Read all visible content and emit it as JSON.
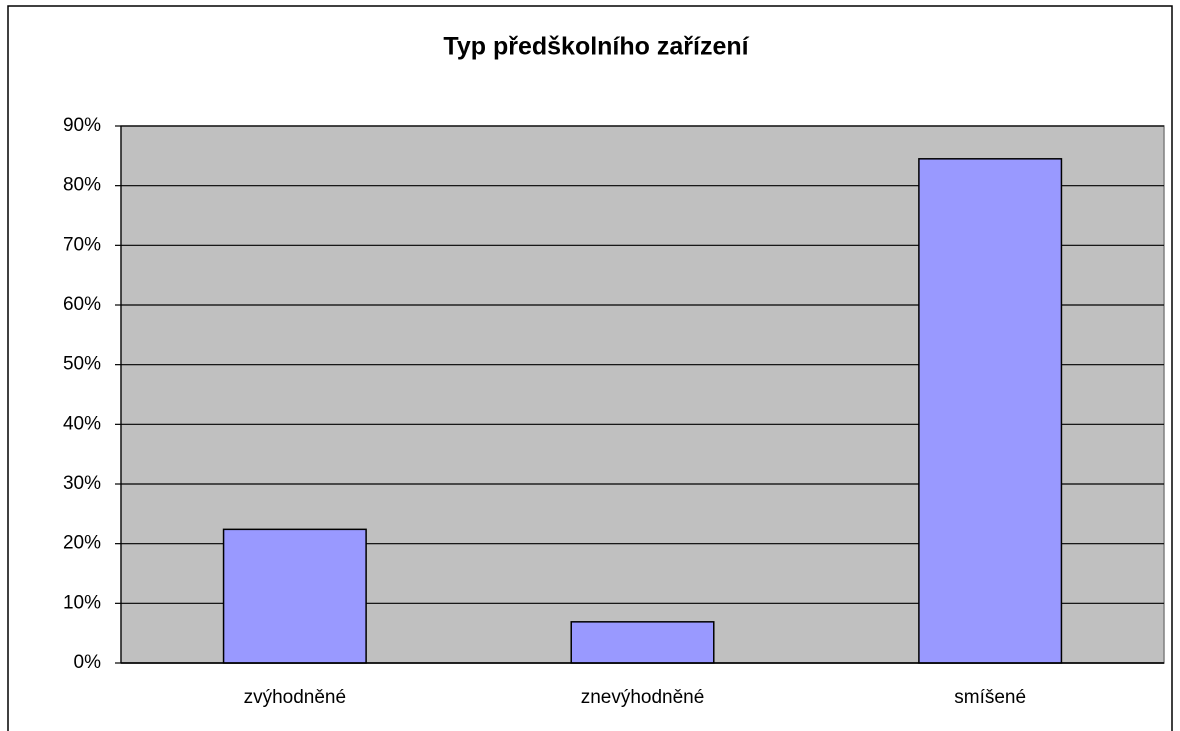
{
  "chart_data": {
    "type": "bar",
    "title": "Typ předškolního zařízení",
    "categories": [
      "zvýhodněné",
      "znevýhodněné",
      "smíšené"
    ],
    "values": [
      22.4,
      6.9,
      84.5
    ],
    "color": "#9999ff",
    "ylim": [
      0,
      90
    ],
    "yticks": [
      {
        "value": 0,
        "label": "0%"
      },
      {
        "value": 10,
        "label": "10%"
      },
      {
        "value": 20,
        "label": "20%"
      },
      {
        "value": 30,
        "label": "30%"
      },
      {
        "value": 40,
        "label": "40%"
      },
      {
        "value": 50,
        "label": "50%"
      },
      {
        "value": 60,
        "label": "60%"
      },
      {
        "value": 70,
        "label": "70%"
      },
      {
        "value": 80,
        "label": "80%"
      },
      {
        "value": 90,
        "label": "90%"
      }
    ],
    "grid": true
  }
}
